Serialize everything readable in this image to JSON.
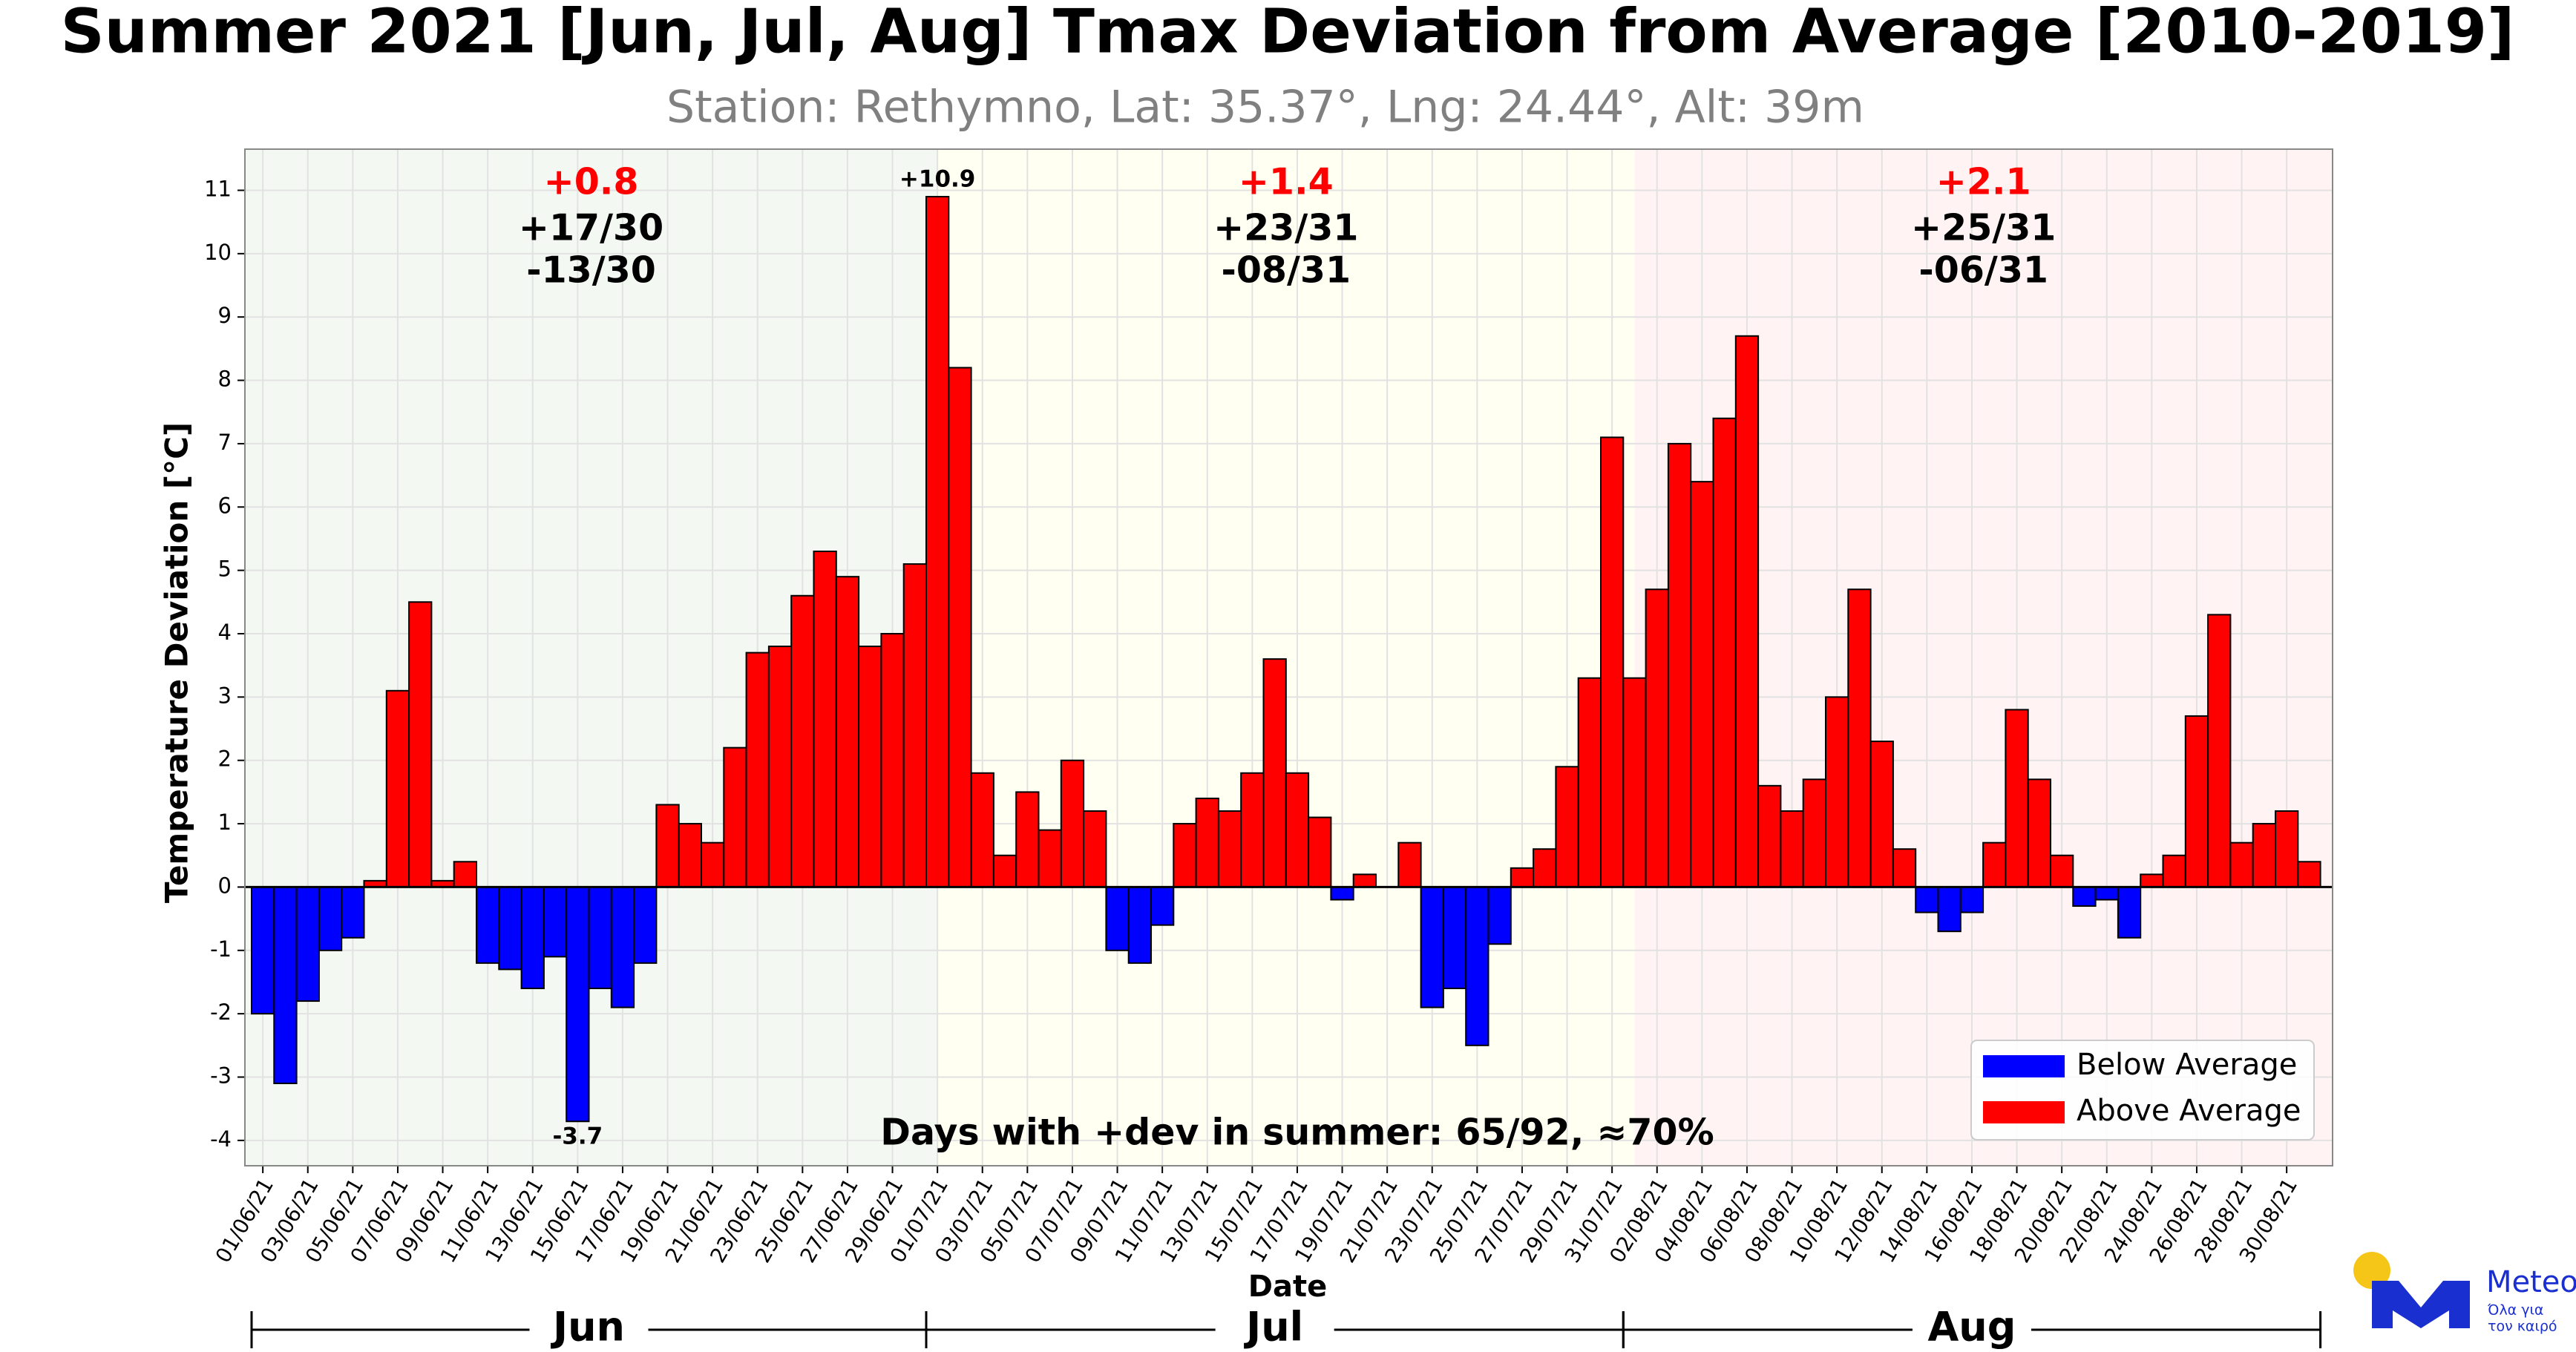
{
  "chart_data": {
    "type": "bar",
    "title": "Summer 2021 [Jun, Jul, Aug] Tmax Deviation from Average [2010-2019]",
    "subtitle": "Station: Rethymno, Lat: 35.37°, Lng: 24.44°, Alt: 39m",
    "x_label": "Date",
    "y_label": "Temperature Deviation [°C]",
    "categories": [
      "01/06/21",
      null,
      "03/06/21",
      null,
      "05/06/21",
      null,
      "07/06/21",
      null,
      "09/06/21",
      null,
      "11/06/21",
      null,
      "13/06/21",
      null,
      "15/06/21",
      null,
      "17/06/21",
      null,
      "19/06/21",
      null,
      "21/06/21",
      null,
      "23/06/21",
      null,
      "25/06/21",
      null,
      "27/06/21",
      null,
      "29/06/21",
      null,
      "01/07/21",
      null,
      "03/07/21",
      null,
      "05/07/21",
      null,
      "07/07/21",
      null,
      "09/07/21",
      null,
      "11/07/21",
      null,
      "13/07/21",
      null,
      "15/07/21",
      null,
      "17/07/21",
      null,
      "19/07/21",
      null,
      "21/07/21",
      null,
      "23/07/21",
      null,
      "25/07/21",
      null,
      "27/07/21",
      null,
      "29/07/21",
      null,
      "31/07/21",
      null,
      "02/08/21",
      null,
      "04/08/21",
      null,
      "06/08/21",
      null,
      "08/08/21",
      null,
      "10/08/21",
      null,
      "12/08/21",
      null,
      "14/08/21",
      null,
      "16/08/21",
      null,
      "18/08/21",
      null,
      "20/08/21",
      null,
      "22/08/21",
      null,
      "24/08/21",
      null,
      "26/08/21",
      null,
      "28/08/21",
      null,
      "30/08/21",
      null
    ],
    "values": [
      -2.0,
      -3.1,
      -1.8,
      -1.0,
      -0.8,
      0.1,
      3.1,
      4.5,
      0.1,
      0.4,
      -1.2,
      -1.3,
      -1.6,
      -1.1,
      -3.7,
      -1.6,
      -1.9,
      -1.2,
      1.3,
      1.0,
      0.7,
      2.2,
      3.7,
      3.8,
      4.6,
      5.3,
      4.9,
      3.8,
      4.0,
      5.1,
      10.9,
      8.2,
      1.8,
      0.5,
      1.5,
      0.9,
      2.0,
      1.2,
      -1.0,
      -1.2,
      -0.6,
      1.0,
      1.4,
      1.2,
      1.8,
      3.6,
      1.8,
      1.1,
      -0.2,
      0.2,
      0.0,
      0.7,
      -1.9,
      -1.6,
      -2.5,
      -0.9,
      0.3,
      0.6,
      1.9,
      3.3,
      7.1,
      3.3,
      4.7,
      7.0,
      6.4,
      7.4,
      8.7,
      1.6,
      1.2,
      1.7,
      3.0,
      4.7,
      2.3,
      0.6,
      -0.4,
      -0.7,
      -0.4,
      0.7,
      2.8,
      1.7,
      0.5,
      -0.3,
      -0.2,
      -0.8,
      0.2,
      0.5,
      2.7,
      4.3,
      0.7,
      1.0,
      1.2,
      0.4
    ],
    "value_labels": [
      null,
      null,
      null,
      null,
      null,
      null,
      null,
      null,
      null,
      null,
      null,
      null,
      null,
      null,
      "-3.7",
      null,
      null,
      null,
      null,
      null,
      null,
      null,
      null,
      null,
      null,
      null,
      null,
      null,
      null,
      null,
      "+10.9",
      null,
      null,
      null,
      null,
      null,
      null,
      null,
      null,
      null,
      null,
      null,
      null,
      null,
      null,
      null,
      null,
      null,
      null,
      null,
      null,
      null,
      null,
      null,
      null,
      null,
      null,
      null,
      null,
      null,
      null,
      null,
      null,
      null,
      null,
      null,
      null,
      null,
      null,
      null,
      null,
      null,
      null,
      null,
      null,
      null,
      null,
      null,
      null,
      null,
      null,
      null,
      null,
      null,
      null,
      null,
      null,
      null,
      null,
      null,
      null,
      null
    ],
    "ylim": [
      -4.4,
      11.65
    ],
    "yticks": [
      -4,
      -3,
      -2,
      -1,
      0,
      1,
      2,
      3,
      4,
      5,
      6,
      7,
      8,
      9,
      10,
      11
    ],
    "grid": true,
    "legend_position": "lower right",
    "legend": [
      {
        "name": "Below Average",
        "color": "#0000ff"
      },
      {
        "name": "Above Average",
        "color": "#ff0000"
      }
    ],
    "months": [
      {
        "label": "Jun",
        "mean": "+0.8",
        "above": "+17/30",
        "below": "-13/30",
        "color": "#f3f8f3"
      },
      {
        "label": "Jul",
        "mean": "+1.4",
        "above": "+23/31",
        "below": "-08/31",
        "color": "#fffff2"
      },
      {
        "label": "Aug",
        "mean": "+2.1",
        "above": "+25/31",
        "below": "-06/31",
        "color": "#fff3f3"
      }
    ],
    "annotation": "Days with +dev in summer: 65/92, ≈70%",
    "logo": {
      "name": "Meteo",
      "tagline_1": "Όλα για",
      "tagline_2": "τον καιρό"
    }
  }
}
